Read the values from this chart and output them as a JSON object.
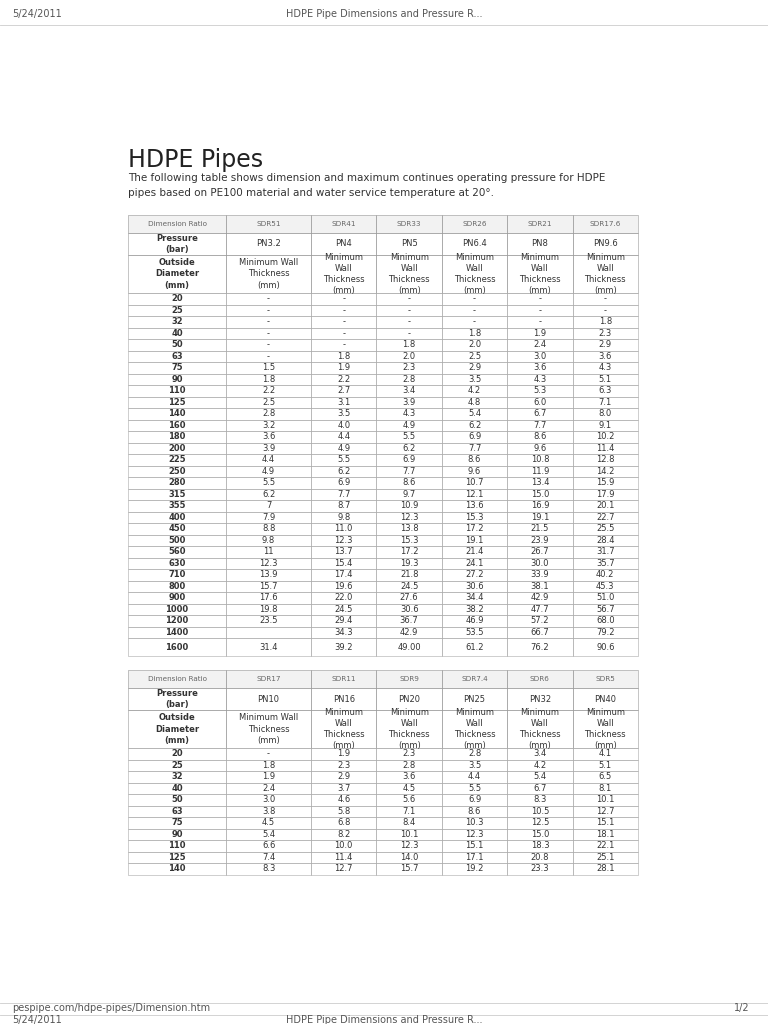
{
  "header_text_top_left": "5/24/2011",
  "header_text_top_center": "HDPE Pipe Dimensions and Pressure R...",
  "footer_text_left": "pespipe.com/hdpe-pipes/Dimension.htm",
  "footer_text_right": "1/2",
  "footer_text_bottom_left": "5/24/2011",
  "footer_text_bottom_center": "HDPE Pipe Dimensions and Pressure R...",
  "title": "HDPE Pipes",
  "subtitle": "The following table shows dimension and maximum continues operating pressure for HDPE\npipes based on PE100 material and water service temperature at 20°.",
  "table1": {
    "col_headers_row1": [
      "Dimension\nRatio",
      "SDR51",
      "SDR41",
      "SDR33",
      "SDR26",
      "SDR21",
      "SDR17.6"
    ],
    "col_headers_row2": [
      "Pressure\n(bar)",
      "PN3.2",
      "PN4",
      "PN5",
      "PN6.4",
      "PN8",
      "PN9.6"
    ],
    "col_headers_row3": [
      "Outside\nDiameter\n(mm)",
      "Minimum Wall\nThickness\n(mm)",
      "Minimum\nWall\nThickness\n(mm)",
      "Minimum\nWall\nThickness\n(mm)",
      "Minimum\nWall\nThickness\n(mm)",
      "Minimum\nWall\nThickness\n(mm)",
      "Minimum\nWall\nThickness\n(mm)"
    ],
    "rows": [
      [
        "20",
        "-",
        "-",
        "-",
        "-",
        "-",
        "-"
      ],
      [
        "25",
        "-",
        "-",
        "-",
        "-",
        "-",
        "-"
      ],
      [
        "32",
        "-",
        "-",
        "-",
        "-",
        "-",
        "1.8"
      ],
      [
        "40",
        "-",
        "-",
        "-",
        "1.8",
        "1.9",
        "2.3"
      ],
      [
        "50",
        "-",
        "-",
        "1.8",
        "2.0",
        "2.4",
        "2.9"
      ],
      [
        "63",
        "-",
        "1.8",
        "2.0",
        "2.5",
        "3.0",
        "3.6"
      ],
      [
        "75",
        "1.5",
        "1.9",
        "2.3",
        "2.9",
        "3.6",
        "4.3"
      ],
      [
        "90",
        "1.8",
        "2.2",
        "2.8",
        "3.5",
        "4.3",
        "5.1"
      ],
      [
        "110",
        "2.2",
        "2.7",
        "3.4",
        "4.2",
        "5.3",
        "6.3"
      ],
      [
        "125",
        "2.5",
        "3.1",
        "3.9",
        "4.8",
        "6.0",
        "7.1"
      ],
      [
        "140",
        "2.8",
        "3.5",
        "4.3",
        "5.4",
        "6.7",
        "8.0"
      ],
      [
        "160",
        "3.2",
        "4.0",
        "4.9",
        "6.2",
        "7.7",
        "9.1"
      ],
      [
        "180",
        "3.6",
        "4.4",
        "5.5",
        "6.9",
        "8.6",
        "10.2"
      ],
      [
        "200",
        "3.9",
        "4.9",
        "6.2",
        "7.7",
        "9.6",
        "11.4"
      ],
      [
        "225",
        "4.4",
        "5.5",
        "6.9",
        "8.6",
        "10.8",
        "12.8"
      ],
      [
        "250",
        "4.9",
        "6.2",
        "7.7",
        "9.6",
        "11.9",
        "14.2"
      ],
      [
        "280",
        "5.5",
        "6.9",
        "8.6",
        "10.7",
        "13.4",
        "15.9"
      ],
      [
        "315",
        "6.2",
        "7.7",
        "9.7",
        "12.1",
        "15.0",
        "17.9"
      ],
      [
        "355",
        "7",
        "8.7",
        "10.9",
        "13.6",
        "16.9",
        "20.1"
      ],
      [
        "400",
        "7.9",
        "9.8",
        "12.3",
        "15.3",
        "19.1",
        "22.7"
      ],
      [
        "450",
        "8.8",
        "11.0",
        "13.8",
        "17.2",
        "21.5",
        "25.5"
      ],
      [
        "500",
        "9.8",
        "12.3",
        "15.3",
        "19.1",
        "23.9",
        "28.4"
      ],
      [
        "560",
        "11",
        "13.7",
        "17.2",
        "21.4",
        "26.7",
        "31.7"
      ],
      [
        "630",
        "12.3",
        "15.4",
        "19.3",
        "24.1",
        "30.0",
        "35.7"
      ],
      [
        "710",
        "13.9",
        "17.4",
        "21.8",
        "27.2",
        "33.9",
        "40.2"
      ],
      [
        "800",
        "15.7",
        "19.6",
        "24.5",
        "30.6",
        "38.1",
        "45.3"
      ],
      [
        "900",
        "17.6",
        "22.0",
        "27.6",
        "34.4",
        "42.9",
        "51.0"
      ],
      [
        "1000",
        "19.8",
        "24.5",
        "30.6",
        "38.2",
        "47.7",
        "56.7"
      ],
      [
        "1200",
        "23.5",
        "29.4",
        "36.7",
        "46.9",
        "57.2",
        "68.0"
      ],
      [
        "1400",
        "",
        "34.3",
        "42.9",
        "53.5",
        "66.7",
        "79.2"
      ],
      [
        "1600",
        "31.4",
        "39.2",
        "49.00",
        "61.2",
        "76.2",
        "90.6"
      ]
    ],
    "tall_rows": [
      30
    ]
  },
  "table2": {
    "col_headers_row1": [
      "Dimension\nRatio",
      "SDR17",
      "SDR11",
      "SDR9",
      "SDR7.4",
      "SDR6",
      "SDR5"
    ],
    "col_headers_row2": [
      "Pressure\n(bar)",
      "PN10",
      "PN16",
      "PN20",
      "PN25",
      "PN32",
      "PN40"
    ],
    "col_headers_row3": [
      "Outside\nDiameter\n(mm)",
      "Minimum Wall\nThickness\n(mm)",
      "Minimum\nWall\nThickness\n(mm)",
      "Minimum\nWall\nThickness\n(mm)",
      "Minimum\nWall\nThickness\n(mm)",
      "Minimum\nWall\nThickness\n(mm)",
      "Minimum\nWall\nThickness\n(mm)"
    ],
    "rows": [
      [
        "20",
        "-",
        "1.9",
        "2.3",
        "2.8",
        "3.4",
        "4.1"
      ],
      [
        "25",
        "1.8",
        "2.3",
        "2.8",
        "3.5",
        "4.2",
        "5.1"
      ],
      [
        "32",
        "1.9",
        "2.9",
        "3.6",
        "4.4",
        "5.4",
        "6.5"
      ],
      [
        "40",
        "2.4",
        "3.7",
        "4.5",
        "5.5",
        "6.7",
        "8.1"
      ],
      [
        "50",
        "3.0",
        "4.6",
        "5.6",
        "6.9",
        "8.3",
        "10.1"
      ],
      [
        "63",
        "3.8",
        "5.8",
        "7.1",
        "8.6",
        "10.5",
        "12.7"
      ],
      [
        "75",
        "4.5",
        "6.8",
        "8.4",
        "10.3",
        "12.5",
        "15.1"
      ],
      [
        "90",
        "5.4",
        "8.2",
        "10.1",
        "12.3",
        "15.0",
        "18.1"
      ],
      [
        "110",
        "6.6",
        "10.0",
        "12.3",
        "15.1",
        "18.3",
        "22.1"
      ],
      [
        "125",
        "7.4",
        "11.4",
        "14.0",
        "17.1",
        "20.8",
        "25.1"
      ],
      [
        "140",
        "8.3",
        "12.7",
        "15.7",
        "19.2",
        "23.3",
        "28.1"
      ]
    ],
    "tall_rows": []
  },
  "bg_color": "#ffffff",
  "text_color": "#333333",
  "title_color": "#222222"
}
